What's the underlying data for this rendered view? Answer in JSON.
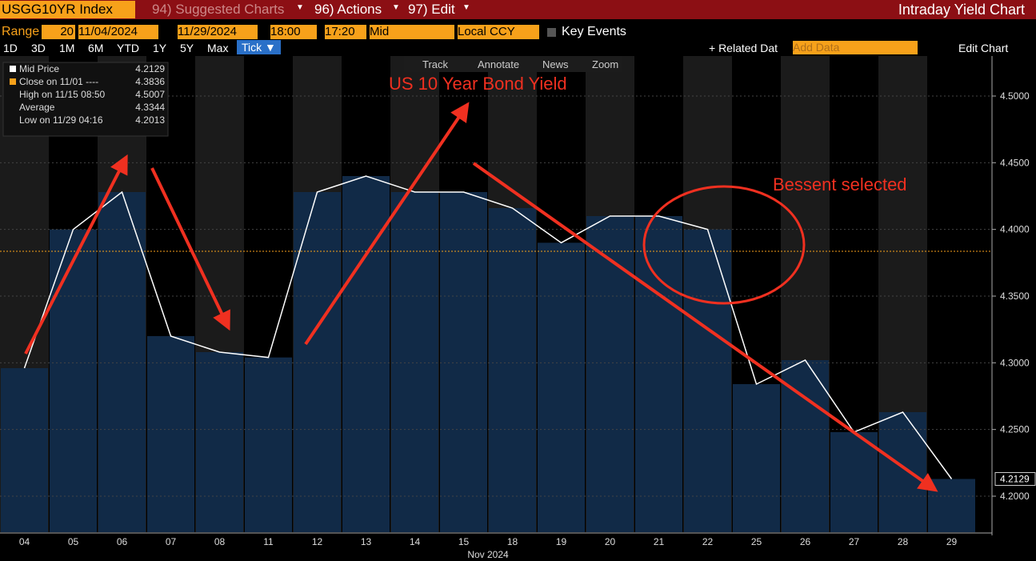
{
  "header": {
    "ticker": "USGG10YR Index",
    "menus": [
      "94) Suggested Charts",
      "96) Actions",
      "97) Edit"
    ],
    "title": "Intraday Yield Chart"
  },
  "controls": {
    "range_label": "Range",
    "period": "20",
    "start": "11/04/2024",
    "end": "11/29/2024",
    "start_time": "18:00",
    "end_time": "17:20",
    "price": "Mid",
    "currency": "Local CCY",
    "key_events": "Key Events"
  },
  "periods": [
    "1D",
    "3D",
    "1M",
    "6M",
    "YTD",
    "1Y",
    "5Y",
    "Max"
  ],
  "tick": "Tick ▼",
  "related": "+ Related Dat",
  "add_data": "Add Data",
  "edit_chart": "Edit Chart",
  "tools": [
    "Track",
    "Annotate",
    "News",
    "Zoom"
  ],
  "legend": [
    {
      "label": "Mid Price",
      "value": 4.2129
    },
    {
      "label": "Close on 11/01 ----",
      "value": 4.3836
    },
    {
      "label": "High on 11/15 08:50",
      "value": 4.5007
    },
    {
      "label": "Average",
      "value": 4.3344
    },
    {
      "label": "Low on 11/29 04:16",
      "value": 4.2013
    }
  ],
  "chart_data": {
    "type": "line",
    "title": "US 10 Year Bond Yield",
    "annotation": "Bessent selected",
    "x_label": "Nov 2024",
    "categories": [
      "04",
      "05",
      "06",
      "07",
      "08",
      "11",
      "12",
      "13",
      "14",
      "15",
      "18",
      "19",
      "20",
      "21",
      "22",
      "25",
      "26",
      "27",
      "28",
      "29"
    ],
    "values": [
      4.296,
      4.4,
      4.428,
      4.32,
      4.308,
      4.304,
      4.428,
      4.44,
      4.428,
      4.428,
      4.416,
      4.39,
      4.41,
      4.41,
      4.4,
      4.284,
      4.302,
      4.248,
      4.263,
      4.2129
    ],
    "color": "#ffffff",
    "ylim": [
      4.173,
      4.53
    ],
    "yticks": [
      {
        "value": 4.2,
        "label": "4.2000"
      },
      {
        "value": 4.25,
        "label": "4.2500"
      },
      {
        "value": 4.3,
        "label": "4.3000"
      },
      {
        "value": 4.35,
        "label": "4.3500"
      },
      {
        "value": 4.4,
        "label": "4.4000"
      },
      {
        "value": 4.45,
        "label": "4.4500"
      },
      {
        "value": 4.5,
        "label": "4.5000"
      }
    ]
  }
}
